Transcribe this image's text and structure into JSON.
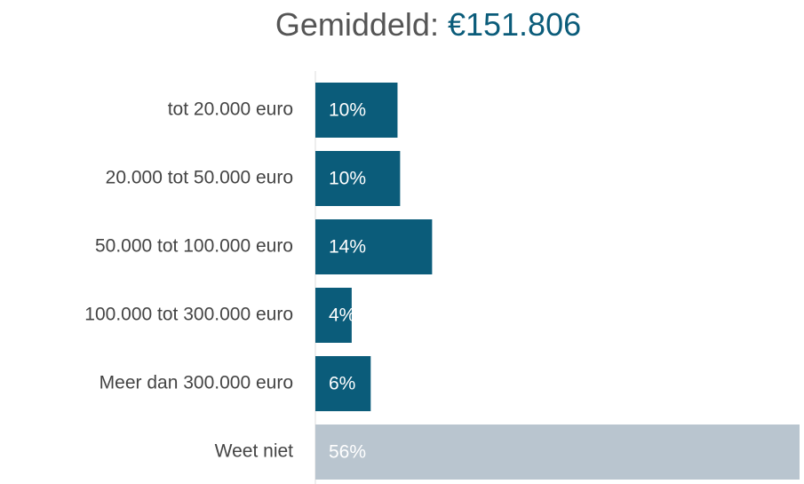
{
  "chart_data": {
    "type": "hbar",
    "title": {
      "label": "Gemiddeld:",
      "value": "€151.806"
    },
    "categories": [
      "tot 20.000 euro",
      "20.000 tot 50.000 euro",
      "50.000 tot 100.000 euro",
      "100.000 tot 300.000 euro",
      "Meer dan 300.000 euro",
      "Weet niet"
    ],
    "values": [
      9.5,
      9.8,
      13.5,
      4.2,
      6.4,
      56
    ],
    "value_labels": [
      "10%",
      "10%",
      "14%",
      "4%",
      "6%",
      "56%"
    ],
    "colors": [
      "#0b5c7a",
      "#0b5c7a",
      "#0b5c7a",
      "#0b5c7a",
      "#0b5c7a",
      "#b9c5cf"
    ],
    "xlim": [
      0,
      56
    ]
  }
}
